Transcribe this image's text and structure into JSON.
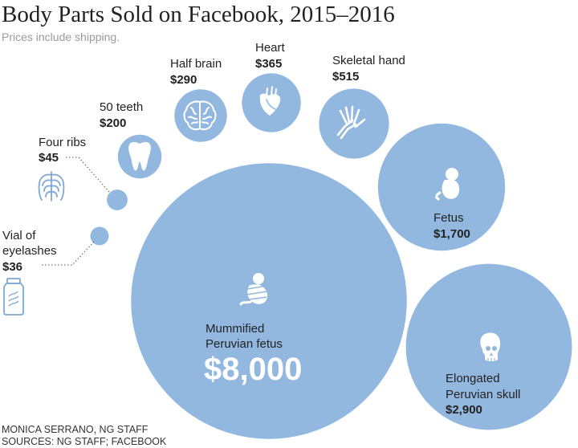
{
  "header": {
    "title": "Body Parts Sold on Facebook, 2015–2016",
    "subtitle": "Prices include shipping."
  },
  "chart_data": {
    "type": "bubble",
    "title": "Body Parts Sold on Facebook, 2015–2016",
    "subtitle": "Prices include shipping.",
    "unit": "USD",
    "bubble_color": "#93b8e0",
    "items": [
      {
        "name": "Vial of eyelashes",
        "price_label": "$36",
        "value": 36,
        "icon": "vial-icon"
      },
      {
        "name": "Four ribs",
        "price_label": "$45",
        "value": 45,
        "icon": "ribcage-icon"
      },
      {
        "name": "50 teeth",
        "price_label": "$200",
        "value": 200,
        "icon": "tooth-icon"
      },
      {
        "name": "Half brain",
        "price_label": "$290",
        "value": 290,
        "icon": "brain-icon"
      },
      {
        "name": "Heart",
        "price_label": "$365",
        "value": 365,
        "icon": "heart-icon"
      },
      {
        "name": "Skeletal hand",
        "price_label": "$515",
        "value": 515,
        "icon": "skeletal-hand-icon"
      },
      {
        "name": "Fetus",
        "price_label": "$1,700",
        "value": 1700,
        "icon": "fetus-icon"
      },
      {
        "name": "Elongated Peruvian skull",
        "price_label": "$2,900",
        "value": 2900,
        "icon": "skull-icon"
      },
      {
        "name": "Mummified Peruvian fetus",
        "price_label": "$8,000",
        "value": 8000,
        "icon": "mummy-icon"
      }
    ]
  },
  "labels": {
    "vial": {
      "line1": "Vial of",
      "line2": "eyelashes",
      "price": "$36"
    },
    "ribs": {
      "line1": "Four ribs",
      "price": "$45"
    },
    "teeth": {
      "line1": "50 teeth",
      "price": "$200"
    },
    "brain": {
      "line1": "Half brain",
      "price": "$290"
    },
    "heart": {
      "line1": "Heart",
      "price": "$365"
    },
    "hand": {
      "line1": "Skeletal hand",
      "price": "$515"
    },
    "fetus": {
      "line1": "Fetus",
      "price": "$1,700"
    },
    "skull": {
      "line1": "Elongated",
      "line2": "Peruvian skull",
      "price": "$2,900"
    },
    "mummy": {
      "line1": "Mummified",
      "line2": "Peruvian fetus",
      "price": "$8,000"
    }
  },
  "footer": {
    "credit": "MONICA SERRANO, NG STAFF",
    "sources": "SOURCES: NG STAFF; FACEBOOK"
  }
}
